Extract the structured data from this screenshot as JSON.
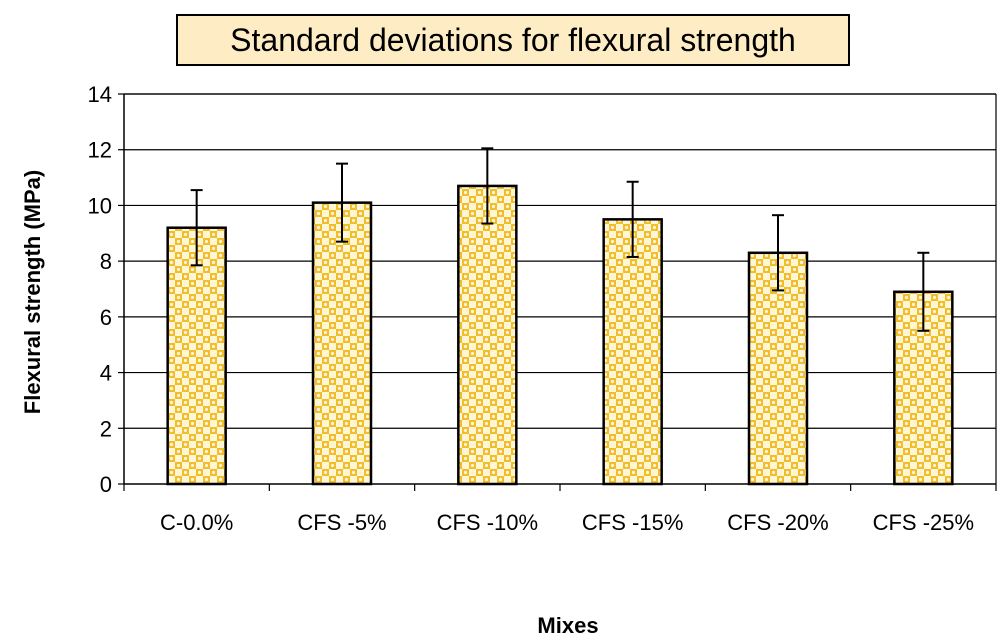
{
  "chart_data": {
    "type": "bar",
    "title": "Standard deviations for flexural strength",
    "xlabel": "Mixes",
    "ylabel": "Flexural  strength (MPa)",
    "categories": [
      "C-0.0%",
      "CFS -5%",
      "CFS -10%",
      "CFS -15%",
      "CFS -20%",
      "CFS -25%"
    ],
    "values": [
      9.2,
      10.1,
      10.7,
      9.5,
      8.3,
      6.9
    ],
    "error": [
      1.35,
      1.4,
      1.35,
      1.35,
      1.35,
      1.4
    ],
    "ylim": [
      0,
      14
    ],
    "yticks": [
      0,
      2,
      4,
      6,
      8,
      10,
      12,
      14
    ],
    "grid": true,
    "legend": "none",
    "colors": {
      "bar_fill": "#f2bd2a",
      "bar_pattern": "#fff6d6",
      "bar_edge": "#000000",
      "title_bg": "#fdecc4"
    }
  }
}
